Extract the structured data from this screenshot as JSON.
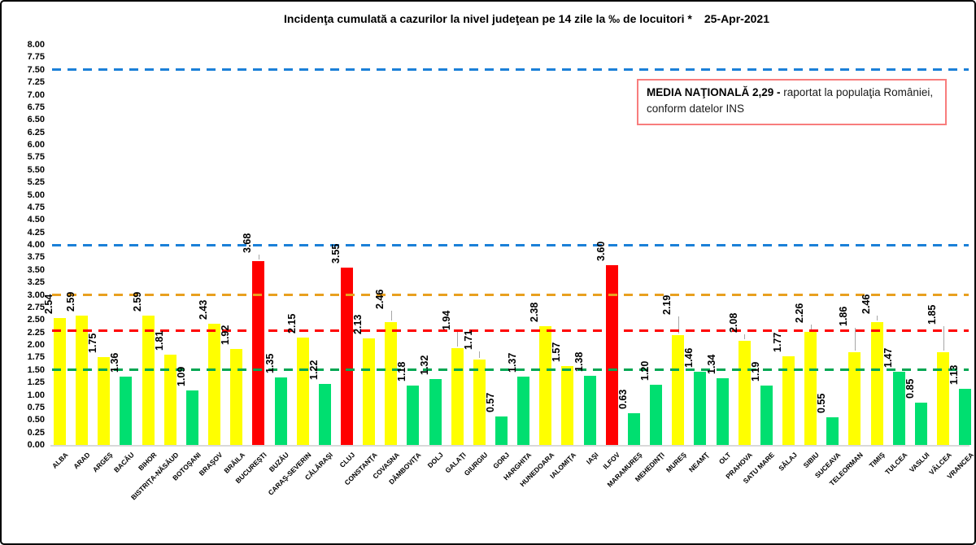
{
  "header": {
    "title": "Incidenţa cumulată a cazurilor la nivel judeţean pe 14 zile la ‰ de locuitori *",
    "date": "25-Apr-2021"
  },
  "note_box": {
    "bold": "MEDIA NAŢIONALĂ  2,29 -",
    "text": "raportat la populaţia României, conform datelor INS",
    "border_color": "#f87d7d"
  },
  "chart_data": {
    "type": "bar",
    "title": "Incidenţa cumulată a cazurilor la nivel judeţean pe 14 zile la ‰ de locuitori * 25-Apr-2021",
    "xlabel": "",
    "ylabel": "",
    "ylim": [
      0,
      8
    ],
    "ytick_step": 0.25,
    "grid": false,
    "legend": false,
    "categories": [
      "ALBA",
      "ARAD",
      "ARGEŞ",
      "BACĂU",
      "BIHOR",
      "BISTRIŢA-NĂSĂUD",
      "BOTOŞANI",
      "BRAŞOV",
      "BRĂILA",
      "BUCUREŞTI",
      "BUZĂU",
      "CARAŞ-SEVERIN",
      "CĂLĂRAŞI",
      "CLUJ",
      "CONSTANŢA",
      "COVASNA",
      "DÂMBOVIŢA",
      "DOLJ",
      "GALAŢI",
      "GIURGIU",
      "GORJ",
      "HARGHITA",
      "HUNEDOARA",
      "IALOMIŢA",
      "IAŞI",
      "ILFOV",
      "MARAMUREŞ",
      "MEHEDINŢI",
      "MUREŞ",
      "NEAMŢ",
      "OLT",
      "PRAHOVA",
      "SATU MARE",
      "SĂLAJ",
      "SIBIU",
      "SUCEAVA",
      "TELEORMAN",
      "TIMIŞ",
      "TULCEA",
      "VASLUI",
      "VÂLCEA",
      "VRANCEA"
    ],
    "values": [
      2.54,
      2.59,
      1.75,
      1.36,
      2.59,
      1.81,
      1.09,
      2.43,
      1.92,
      3.68,
      1.35,
      2.15,
      1.22,
      3.55,
      2.13,
      2.46,
      1.18,
      1.32,
      1.94,
      1.71,
      0.57,
      1.37,
      2.38,
      1.57,
      1.38,
      3.6,
      0.63,
      1.2,
      2.19,
      1.46,
      1.34,
      2.08,
      1.19,
      1.77,
      2.26,
      0.55,
      1.86,
      2.46,
      1.47,
      0.85,
      1.85,
      1.13
    ],
    "colors": {
      "red": "#ff0000",
      "yellow": "#ffff00",
      "green": "#00df70"
    },
    "color_thresholds": {
      "red": 3.0,
      "yellow": 1.5
    },
    "reference_lines": [
      {
        "value": 7.5,
        "color": "#1b80d8",
        "name": "upper-blue-line"
      },
      {
        "value": 4.0,
        "color": "#1b80d8",
        "name": "lower-blue-line"
      },
      {
        "value": 3.0,
        "color": "#e8a020",
        "name": "orange-line"
      },
      {
        "value": 2.29,
        "color": "#ff0000",
        "name": "national-average-line"
      },
      {
        "value": 1.5,
        "color": "#00a652",
        "name": "green-line"
      }
    ],
    "label_offsets": {
      "9": 10,
      "15": 16,
      "18": 22,
      "19": 12,
      "28": 25,
      "31": 10,
      "34": 11,
      "36": 32,
      "37": 10,
      "40": 34
    }
  }
}
